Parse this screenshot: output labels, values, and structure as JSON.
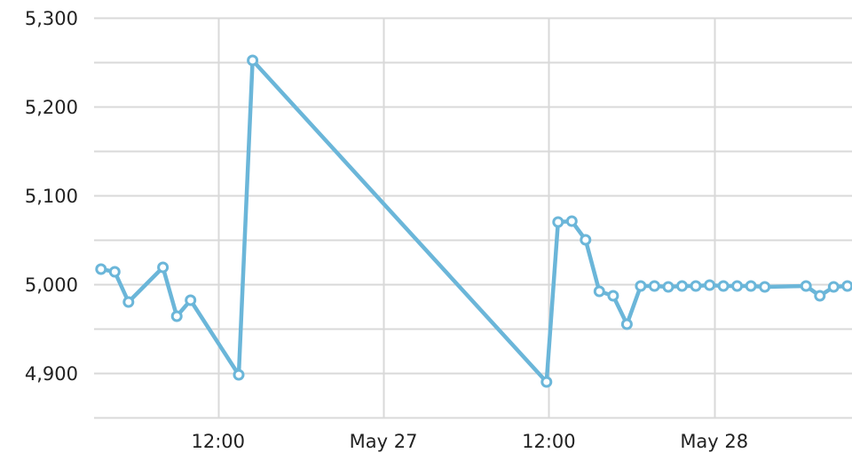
{
  "chart_data": {
    "type": "line",
    "title": "",
    "xlabel": "",
    "ylabel": "",
    "x_axis": {
      "type": "datetime",
      "range": [
        "2023-05-26T03:00",
        "2023-05-28T10:00"
      ],
      "ticks": [
        {
          "value": "2023-05-26T12:00",
          "label": "12:00"
        },
        {
          "value": "2023-05-27T00:00",
          "label": "May 27"
        },
        {
          "value": "2023-05-27T12:00",
          "label": "12:00"
        },
        {
          "value": "2023-05-28T00:00",
          "label": "May 28"
        }
      ]
    },
    "y_axis": {
      "range": [
        4850,
        5300
      ],
      "major_ticks": [
        {
          "value": 4900,
          "label": "4,900"
        },
        {
          "value": 5000,
          "label": "5,000"
        },
        {
          "value": 5100,
          "label": "5,100"
        },
        {
          "value": 5200,
          "label": "5,200"
        },
        {
          "value": 5300,
          "label": "5,300"
        }
      ],
      "minor_ticks": [
        4950,
        5050,
        5150,
        5250
      ]
    },
    "grid": true,
    "series": [
      {
        "color": "#6bb6d9",
        "points": [
          {
            "x": "2023-05-26T03:30",
            "y": 5017
          },
          {
            "x": "2023-05-26T04:30",
            "y": 5014
          },
          {
            "x": "2023-05-26T05:30",
            "y": 4980
          },
          {
            "x": "2023-05-26T08:00",
            "y": 5019
          },
          {
            "x": "2023-05-26T09:00",
            "y": 4964
          },
          {
            "x": "2023-05-26T10:00",
            "y": 4982
          },
          {
            "x": "2023-05-26T13:30",
            "y": 4898
          },
          {
            "x": "2023-05-26T14:30",
            "y": 5252
          },
          {
            "x": "2023-05-27T11:50",
            "y": 4890
          },
          {
            "x": "2023-05-27T12:40",
            "y": 5070
          },
          {
            "x": "2023-05-27T13:40",
            "y": 5071
          },
          {
            "x": "2023-05-27T14:40",
            "y": 5050
          },
          {
            "x": "2023-05-27T15:40",
            "y": 4992
          },
          {
            "x": "2023-05-27T16:40",
            "y": 4987
          },
          {
            "x": "2023-05-27T17:40",
            "y": 4955
          },
          {
            "x": "2023-05-27T18:40",
            "y": 4998
          },
          {
            "x": "2023-05-27T19:40",
            "y": 4998
          },
          {
            "x": "2023-05-27T20:40",
            "y": 4997
          },
          {
            "x": "2023-05-27T21:40",
            "y": 4998
          },
          {
            "x": "2023-05-27T22:40",
            "y": 4998
          },
          {
            "x": "2023-05-27T23:40",
            "y": 4999
          },
          {
            "x": "2023-05-28T00:40",
            "y": 4998
          },
          {
            "x": "2023-05-28T01:40",
            "y": 4998
          },
          {
            "x": "2023-05-28T02:40",
            "y": 4998
          },
          {
            "x": "2023-05-28T03:40",
            "y": 4997
          },
          {
            "x": "2023-05-28T06:40",
            "y": 4998
          },
          {
            "x": "2023-05-28T07:40",
            "y": 4987
          },
          {
            "x": "2023-05-28T08:40",
            "y": 4997
          },
          {
            "x": "2023-05-28T09:40",
            "y": 4998
          }
        ]
      }
    ]
  }
}
